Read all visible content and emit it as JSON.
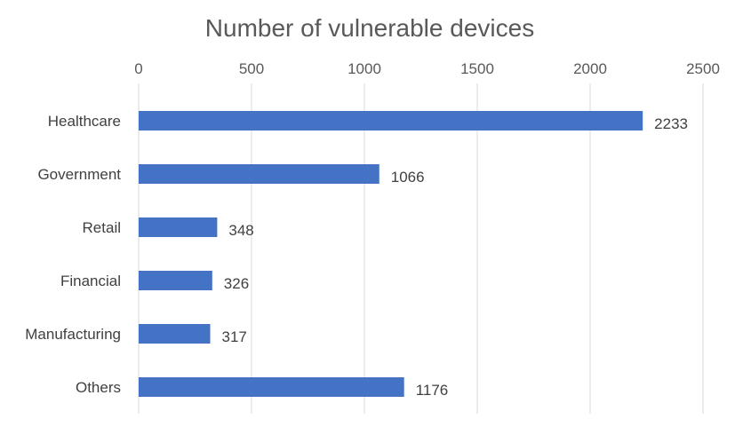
{
  "chart_data": {
    "type": "bar",
    "orientation": "horizontal",
    "title": "Number of vulnerable devices",
    "categories": [
      "Healthcare",
      "Government",
      "Retail",
      "Financial",
      "Manufacturing",
      "Others"
    ],
    "values": [
      2233,
      1066,
      348,
      326,
      317,
      1176
    ],
    "x_ticks": [
      "0",
      "500",
      "1000",
      "1500",
      "2000",
      "2500"
    ],
    "xlim": [
      0,
      2500
    ],
    "x_axis_position": "top",
    "grid": true,
    "data_labels": true,
    "bar_color": "#4472C4",
    "legend": "none"
  }
}
